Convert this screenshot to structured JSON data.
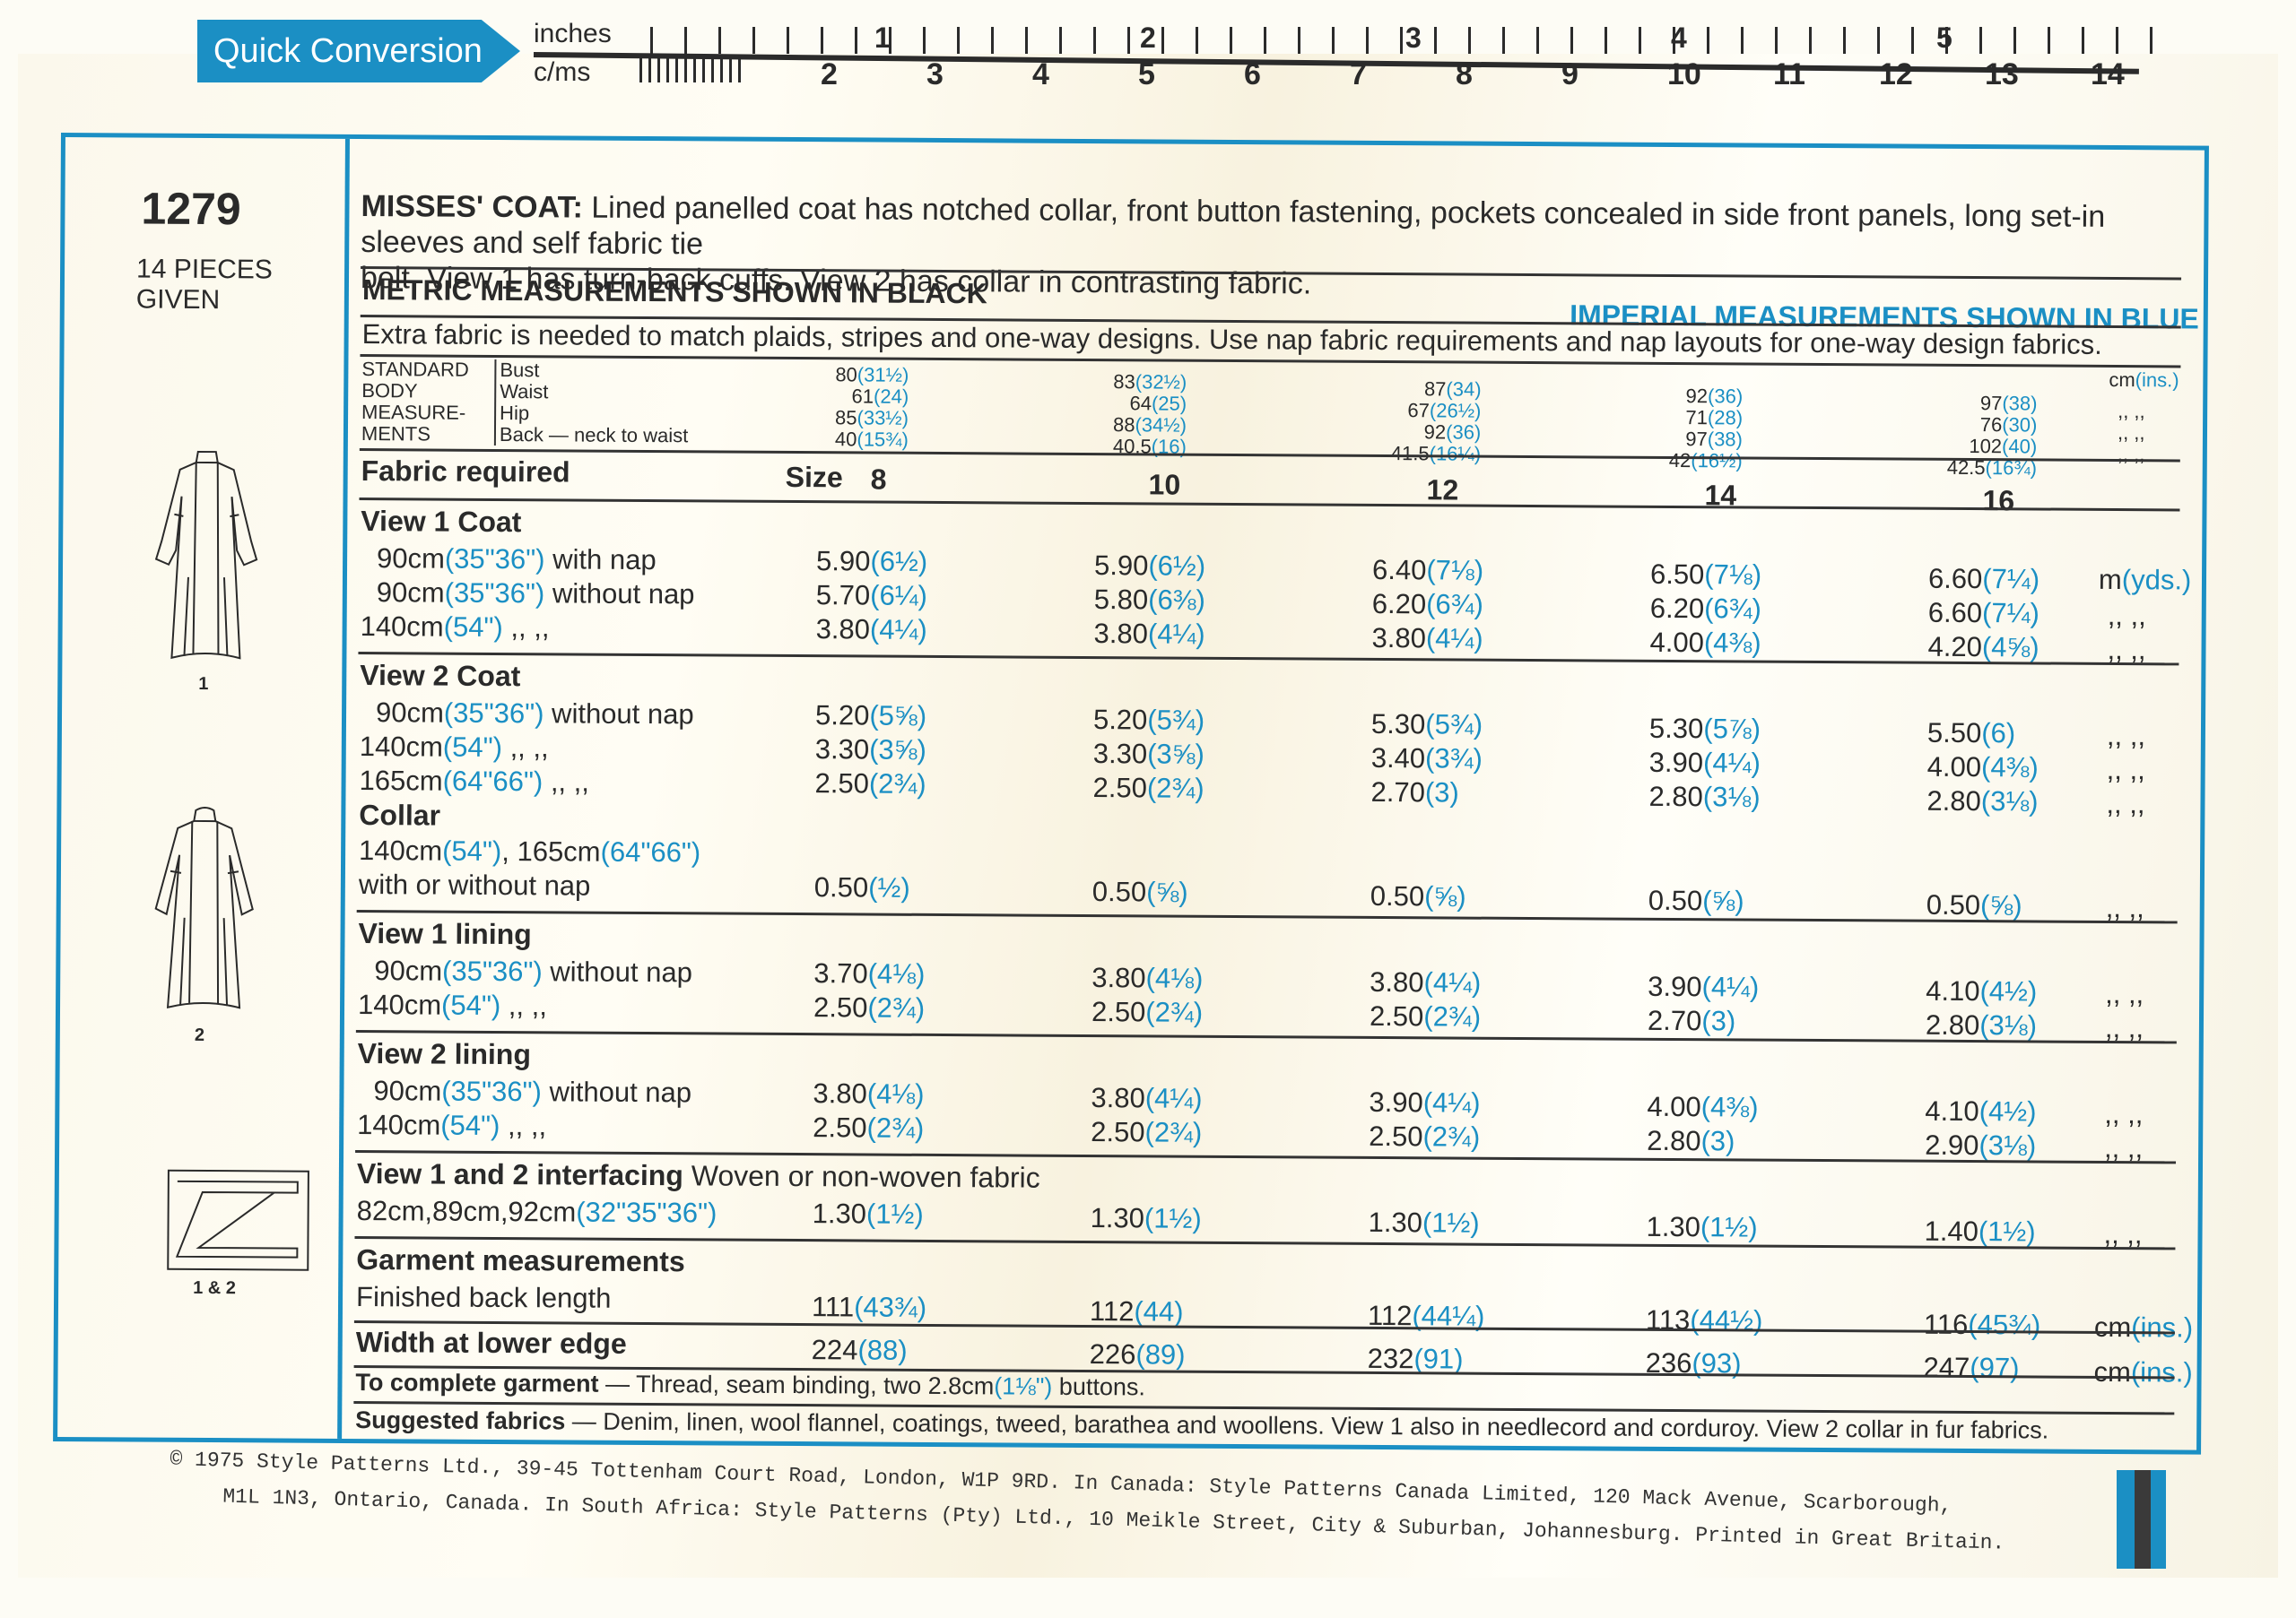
{
  "ruler": {
    "badge": "Quick Conversion",
    "inches_label": "inches",
    "cms_label": "c/ms",
    "inch_numbers": [
      "1",
      "2",
      "3",
      "4",
      "5"
    ],
    "cm_numbers": [
      "2",
      "3",
      "4",
      "5",
      "6",
      "7",
      "8",
      "9",
      "10",
      "11",
      "12",
      "13",
      "14"
    ]
  },
  "pattern": {
    "number": "1279",
    "pieces": "14 PIECES",
    "pieces_given": "GIVEN",
    "sketch_labels": [
      "1",
      "2",
      "1 & 2"
    ]
  },
  "description": {
    "title": "MISSES' COAT:",
    "text_line1": "Lined panelled coat has notched collar, front button fastening, pockets concealed in side front panels, long set-in sleeves and self fabric tie",
    "text_line2": "belt. View 1 has turn-back cuffs. View 2 has collar in contrasting fabric."
  },
  "headers": {
    "metric": "METRIC MEASUREMENTS SHOWN IN BLACK",
    "imperial": "IMPERIAL MEASUREMENTS SHOWN IN BLUE",
    "extra_fabric": "Extra fabric is needed to match plaids, stripes and one-way designs. Use nap fabric requirements and nap layouts for one-way design fabrics."
  },
  "body_measurements": {
    "label_lines": [
      "STANDARD",
      "BODY",
      "MEASURE-",
      "MENTS"
    ],
    "items": [
      "Bust",
      "Waist",
      "Hip",
      "Back — neck to waist"
    ],
    "unit_header": {
      "metric": "cm",
      "imperial": "(ins.)"
    },
    "ditto": ",,  ,,",
    "sizes": [
      {
        "size": "8",
        "values": [
          [
            "80",
            "(31½)"
          ],
          [
            "61",
            "(24)"
          ],
          [
            "85",
            "(33½)"
          ],
          [
            "40",
            "(15¾)"
          ]
        ]
      },
      {
        "size": "10",
        "values": [
          [
            "83",
            "(32½)"
          ],
          [
            "64",
            "(25)"
          ],
          [
            "88",
            "(34½)"
          ],
          [
            "40.5",
            "(16)"
          ]
        ]
      },
      {
        "size": "12",
        "values": [
          [
            "87",
            "(34)"
          ],
          [
            "67",
            "(26½)"
          ],
          [
            "92",
            "(36)"
          ],
          [
            "41.5",
            "(16¼)"
          ]
        ]
      },
      {
        "size": "14",
        "values": [
          [
            "92",
            "(36)"
          ],
          [
            "71",
            "(28)"
          ],
          [
            "97",
            "(38)"
          ],
          [
            "42",
            "(16½)"
          ]
        ]
      },
      {
        "size": "16",
        "values": [
          [
            "97",
            "(38)"
          ],
          [
            "76",
            "(30)"
          ],
          [
            "102",
            "(40)"
          ],
          [
            "42.5",
            "(16¾)"
          ]
        ]
      }
    ]
  },
  "fabric_table": {
    "title": "Fabric required",
    "size_label": "Size",
    "sizes": [
      "8",
      "10",
      "12",
      "14",
      "16"
    ],
    "unit_m": "m",
    "unit_yds": "(yds.)",
    "unit_cm": "cm",
    "unit_ins": "(ins.)",
    "ditto": ",,   ,,",
    "sections": [
      {
        "heading": "View 1   Coat",
        "rows": [
          {
            "w_metric": "90cm",
            "w_imp": "(35\"36\")",
            "desc": "with nap",
            "vals": [
              [
                "5.90",
                "(6½)"
              ],
              [
                "5.90",
                "(6½)"
              ],
              [
                "6.40",
                "(7⅛)"
              ],
              [
                "6.50",
                "(7⅛)"
              ],
              [
                "6.60",
                "(7¼)"
              ]
            ]
          },
          {
            "w_metric": "90cm",
            "w_imp": "(35\"36\")",
            "desc": "without nap",
            "vals": [
              [
                "5.70",
                "(6¼)"
              ],
              [
                "5.80",
                "(6⅜)"
              ],
              [
                "6.20",
                "(6¾)"
              ],
              [
                "6.20",
                "(6¾)"
              ],
              [
                "6.60",
                "(7¼)"
              ]
            ]
          },
          {
            "w_metric": "140cm",
            "w_imp": "(54\")",
            "desc": ",,      ,,",
            "vals": [
              [
                "3.80",
                "(4¼)"
              ],
              [
                "3.80",
                "(4¼)"
              ],
              [
                "3.80",
                "(4¼)"
              ],
              [
                "4.00",
                "(4⅜)"
              ],
              [
                "4.20",
                "(4⅝)"
              ]
            ]
          }
        ]
      },
      {
        "heading": "View 2   Coat",
        "rows": [
          {
            "w_metric": "90cm",
            "w_imp": "(35\"36\")",
            "desc": "without nap",
            "vals": [
              [
                "5.20",
                "(5⅝)"
              ],
              [
                "5.20",
                "(5¾)"
              ],
              [
                "5.30",
                "(5¾)"
              ],
              [
                "5.30",
                "(5⅞)"
              ],
              [
                "5.50",
                "(6)"
              ]
            ]
          },
          {
            "w_metric": "140cm",
            "w_imp": "(54\")",
            "desc": ",,      ,,",
            "vals": [
              [
                "3.30",
                "(3⅝)"
              ],
              [
                "3.30",
                "(3⅝)"
              ],
              [
                "3.40",
                "(3¾)"
              ],
              [
                "3.90",
                "(4¼)"
              ],
              [
                "4.00",
                "(4⅜)"
              ]
            ]
          },
          {
            "w_metric": "165cm",
            "w_imp": "(64\"66\")",
            "desc": ",,      ,,",
            "vals": [
              [
                "2.50",
                "(2¾)"
              ],
              [
                "2.50",
                "(2¾)"
              ],
              [
                "2.70",
                "(3)"
              ],
              [
                "2.80",
                "(3⅛)"
              ],
              [
                "2.80",
                "(3⅛)"
              ]
            ]
          }
        ],
        "collar": {
          "heading": "Collar",
          "line1_a": "140cm",
          "line1_a_imp": "(54\")",
          "line1_b": ", 165cm",
          "line1_b_imp": "(64\"66\")",
          "line2": "with or without nap",
          "vals": [
            [
              "0.50",
              "(½)"
            ],
            [
              "0.50",
              "(⅝)"
            ],
            [
              "0.50",
              "(⅝)"
            ],
            [
              "0.50",
              "(⅝)"
            ],
            [
              "0.50",
              "(⅝)"
            ]
          ]
        }
      },
      {
        "heading": "View 1 lining",
        "rows": [
          {
            "w_metric": "90cm",
            "w_imp": "(35\"36\")",
            "desc": "without nap",
            "vals": [
              [
                "3.70",
                "(4⅛)"
              ],
              [
                "3.80",
                "(4⅛)"
              ],
              [
                "3.80",
                "(4¼)"
              ],
              [
                "3.90",
                "(4¼)"
              ],
              [
                "4.10",
                "(4½)"
              ]
            ]
          },
          {
            "w_metric": "140cm",
            "w_imp": "(54\")",
            "desc": ",,      ,,",
            "vals": [
              [
                "2.50",
                "(2¾)"
              ],
              [
                "2.50",
                "(2¾)"
              ],
              [
                "2.50",
                "(2¾)"
              ],
              [
                "2.70",
                "(3)"
              ],
              [
                "2.80",
                "(3⅛)"
              ]
            ]
          }
        ]
      },
      {
        "heading": "View 2 lining",
        "rows": [
          {
            "w_metric": "90cm",
            "w_imp": "(35\"36\")",
            "desc": "without nap",
            "vals": [
              [
                "3.80",
                "(4⅛)"
              ],
              [
                "3.80",
                "(4¼)"
              ],
              [
                "3.90",
                "(4¼)"
              ],
              [
                "4.00",
                "(4⅜)"
              ],
              [
                "4.10",
                "(4½)"
              ]
            ]
          },
          {
            "w_metric": "140cm",
            "w_imp": "(54\")",
            "desc": ",,      ,,",
            "vals": [
              [
                "2.50",
                "(2¾)"
              ],
              [
                "2.50",
                "(2¾)"
              ],
              [
                "2.50",
                "(2¾)"
              ],
              [
                "2.80",
                "(3)"
              ],
              [
                "2.90",
                "(3⅛)"
              ]
            ]
          }
        ]
      },
      {
        "heading": "View 1 and 2 interfacing",
        "heading_note": "Woven or non-woven fabric",
        "rows": [
          {
            "w_metric": "82cm,89cm,92cm",
            "w_imp": "(32\"35\"36\")",
            "desc": "",
            "vals": [
              [
                "1.30",
                "(1½)"
              ],
              [
                "1.30",
                "(1½)"
              ],
              [
                "1.30",
                "(1½)"
              ],
              [
                "1.30",
                "(1½)"
              ],
              [
                "1.40",
                "(1½)"
              ]
            ]
          }
        ]
      }
    ],
    "garment": {
      "heading": "Garment measurements",
      "back_length_label": "Finished back length",
      "back_length": [
        [
          "111",
          "(43¾)"
        ],
        [
          "112",
          "(44)"
        ],
        [
          "112",
          "(44¼)"
        ],
        [
          "113",
          "(44½)"
        ],
        [
          "116",
          "(45¾)"
        ]
      ],
      "width_label": "Width at lower edge",
      "width": [
        [
          "224",
          "(88)"
        ],
        [
          "226",
          "(89)"
        ],
        [
          "232",
          "(91)"
        ],
        [
          "236",
          "(93)"
        ],
        [
          "247",
          "(97)"
        ]
      ]
    }
  },
  "notions": {
    "label": "To complete garment",
    "text_a": " — Thread, seam binding, two 2.8cm",
    "text_imp": "(1⅛\")",
    "text_b": " buttons."
  },
  "suggested": {
    "label": "Suggested fabrics",
    "text": " — Denim, linen, wool flannel, coatings, tweed, barathea and woollens. View 1 also in needlecord and corduroy. View 2 collar  in fur fabrics."
  },
  "copyright": {
    "line1": "© 1975 Style Patterns Ltd., 39-45 Tottenham Court Road, London, W1P 9RD. In Canada: Style Patterns Canada Limited, 120 Mack Avenue, Scarborough,",
    "line2": "M1L 1N3, Ontario, Canada. In South Africa: Style Patterns (Pty) Ltd., 10 Meikle Street, City & Suburban, Johannesburg. Printed in Great Britain."
  },
  "colors": {
    "accent_blue": "#1b8fc4",
    "ink": "#2a2a2a",
    "paper": "#fbf8ec"
  }
}
